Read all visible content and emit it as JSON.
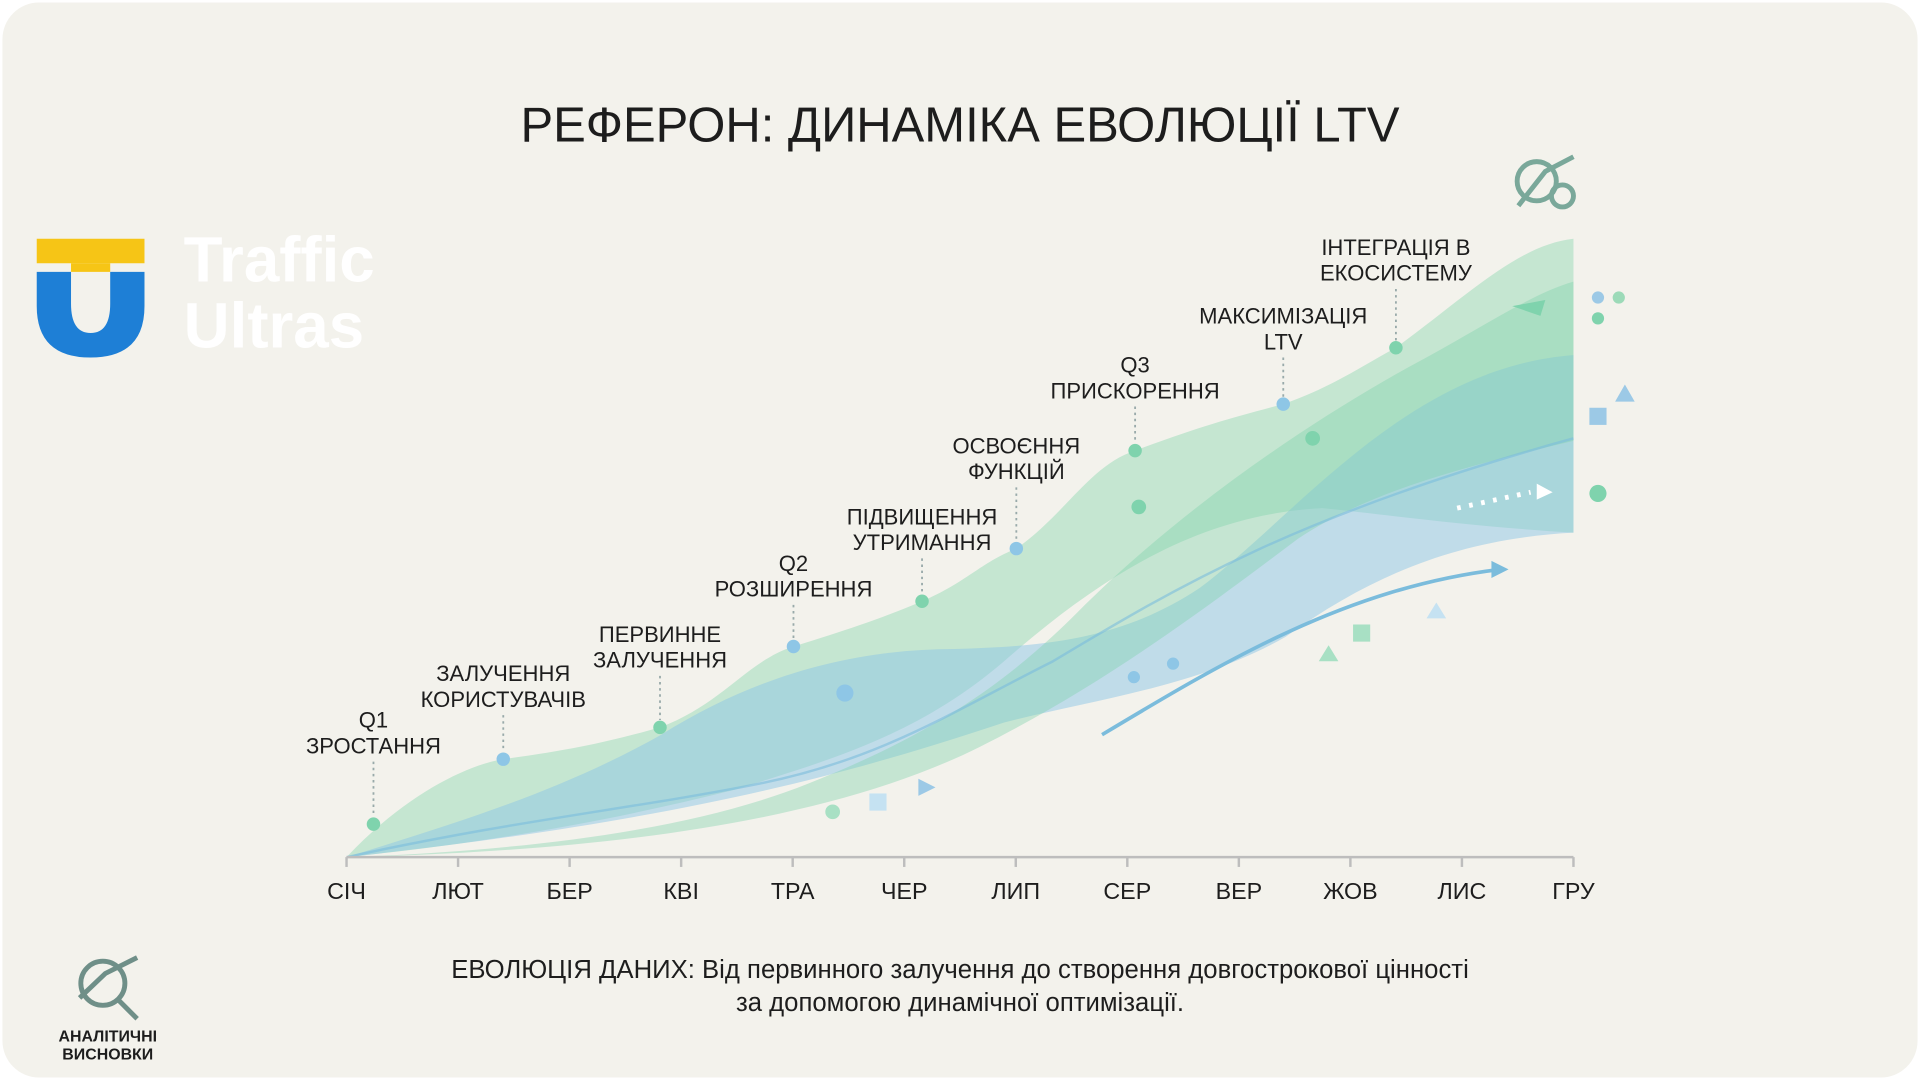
{
  "chart_data": {
    "type": "stream",
    "title": "РЕФЕРОН: ДИНАМІКА ЕВОЛЮЦІЇ LTV",
    "categories": [
      "СІЧ",
      "ЛЮТ",
      "БЕР",
      "КВІ",
      "ТРА",
      "ЧЕР",
      "ЛИП",
      "СЕР",
      "ВЕР",
      "ЖОВ",
      "ЛИС",
      "ГРУ"
    ],
    "annotations": [
      {
        "lines": [
          "Q1",
          "ЗРОСТАННЯ"
        ]
      },
      {
        "lines": [
          "ЗАЛУЧЕННЯ",
          "КОРИСТУВАЧІВ"
        ]
      },
      {
        "lines": [
          "ПЕРВИННЕ",
          "ЗАЛУЧЕННЯ"
        ]
      },
      {
        "lines": [
          "Q2",
          "РОЗШИРЕННЯ"
        ]
      },
      {
        "lines": [
          "ПІДВИЩЕННЯ",
          "УТРИМАННЯ"
        ]
      },
      {
        "lines": [
          "ОСВОЄННЯ",
          "ФУНКЦІЙ"
        ]
      },
      {
        "lines": [
          "Q3",
          "ПРИСКОРЕННЯ"
        ]
      },
      {
        "lines": [
          "МАКСИМІЗАЦІЯ",
          "LTV"
        ]
      },
      {
        "lines": [
          "ІНТЕГРАЦІЯ В",
          "ЕКОСИСТЕМУ"
        ]
      }
    ],
    "caption": [
      "ЕВОЛЮЦІЯ ДАНИХ: Від первинного залучення до створення довгострокової цінності",
      "за допомогою динамічної оптимізації."
    ]
  },
  "logo": {
    "lines": [
      "Traffic",
      "Ultras"
    ]
  },
  "badge": {
    "lines": [
      "АНАЛІТИЧНІ",
      "ВИСНОВКИ"
    ]
  }
}
